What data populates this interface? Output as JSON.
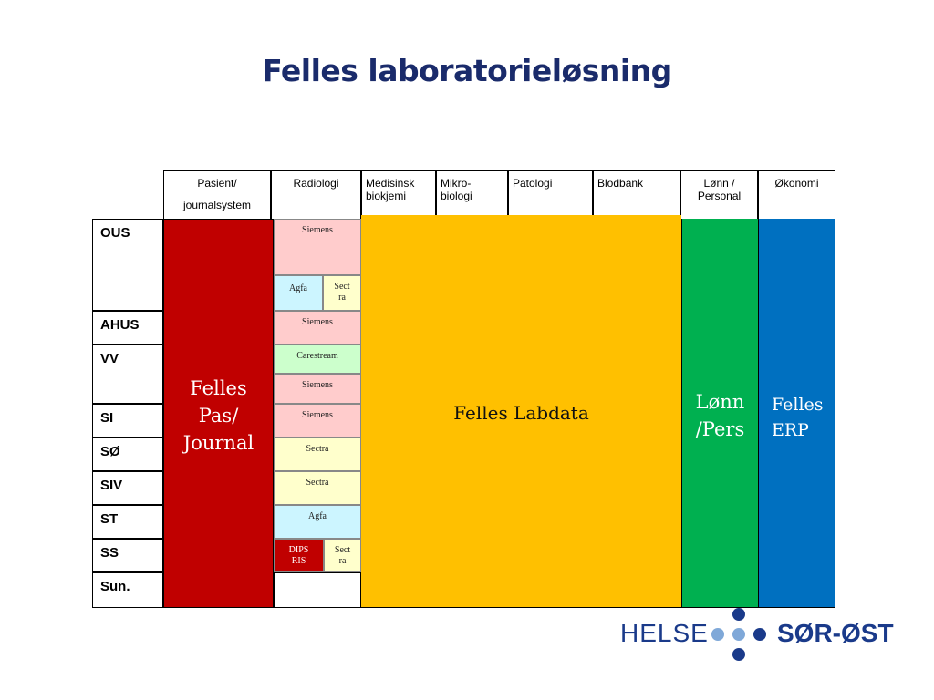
{
  "title": "Felles laboratorieløsning",
  "columns": {
    "pasient": [
      "Pasient/",
      "journalsystem"
    ],
    "radiologi": "Radiologi",
    "medisinsk": [
      "Medisinsk",
      "biokjemi"
    ],
    "mikro": [
      "Mikro-",
      "biologi"
    ],
    "patologi": "Patologi",
    "blodbank": "Blodbank",
    "lonn": [
      "Lønn /",
      "Personal"
    ],
    "okonomi": "Økonomi"
  },
  "rows": [
    "OUS",
    "AHUS",
    "VV",
    "SI",
    "SØ",
    "SIV",
    "ST",
    "SS",
    "Sun."
  ],
  "blocks": {
    "pas_journal": [
      "Felles",
      "Pas/",
      "Journal"
    ],
    "labdata": "Felles Labdata",
    "lonn_pers": [
      "Lønn",
      "/Pers"
    ],
    "erp": [
      "Felles",
      "ERP"
    ]
  },
  "radiology": {
    "ous_siemens": "Siemens",
    "ous_agfa": "Agfa",
    "ous_sectra": [
      "Sect",
      "ra"
    ],
    "ahus": "Siemens",
    "vv_carestream": "Carestream",
    "vv_siemens": "Siemens",
    "si": "Siemens",
    "so": "Sectra",
    "siv": "Sectra",
    "st": "Agfa",
    "ss_dips": [
      "DIPS",
      "RIS"
    ],
    "ss_sectra": [
      "Sect",
      "ra"
    ]
  },
  "logo": {
    "left": "HELSE",
    "right": "SØR-ØST"
  },
  "colors": {
    "title": "#1a2b6b",
    "pas_journal": "#c00000",
    "labdata": "#ffc000",
    "lonn": "#00b050",
    "erp": "#0070c0",
    "siemens": "#ffcccc",
    "agfa": "#ccf5ff",
    "sectra": "#ffffcc",
    "carestream": "#ccffcc",
    "dips": "#c00000",
    "logo_dark": "#1a3a8a",
    "logo_light": "#7fa8d8"
  }
}
